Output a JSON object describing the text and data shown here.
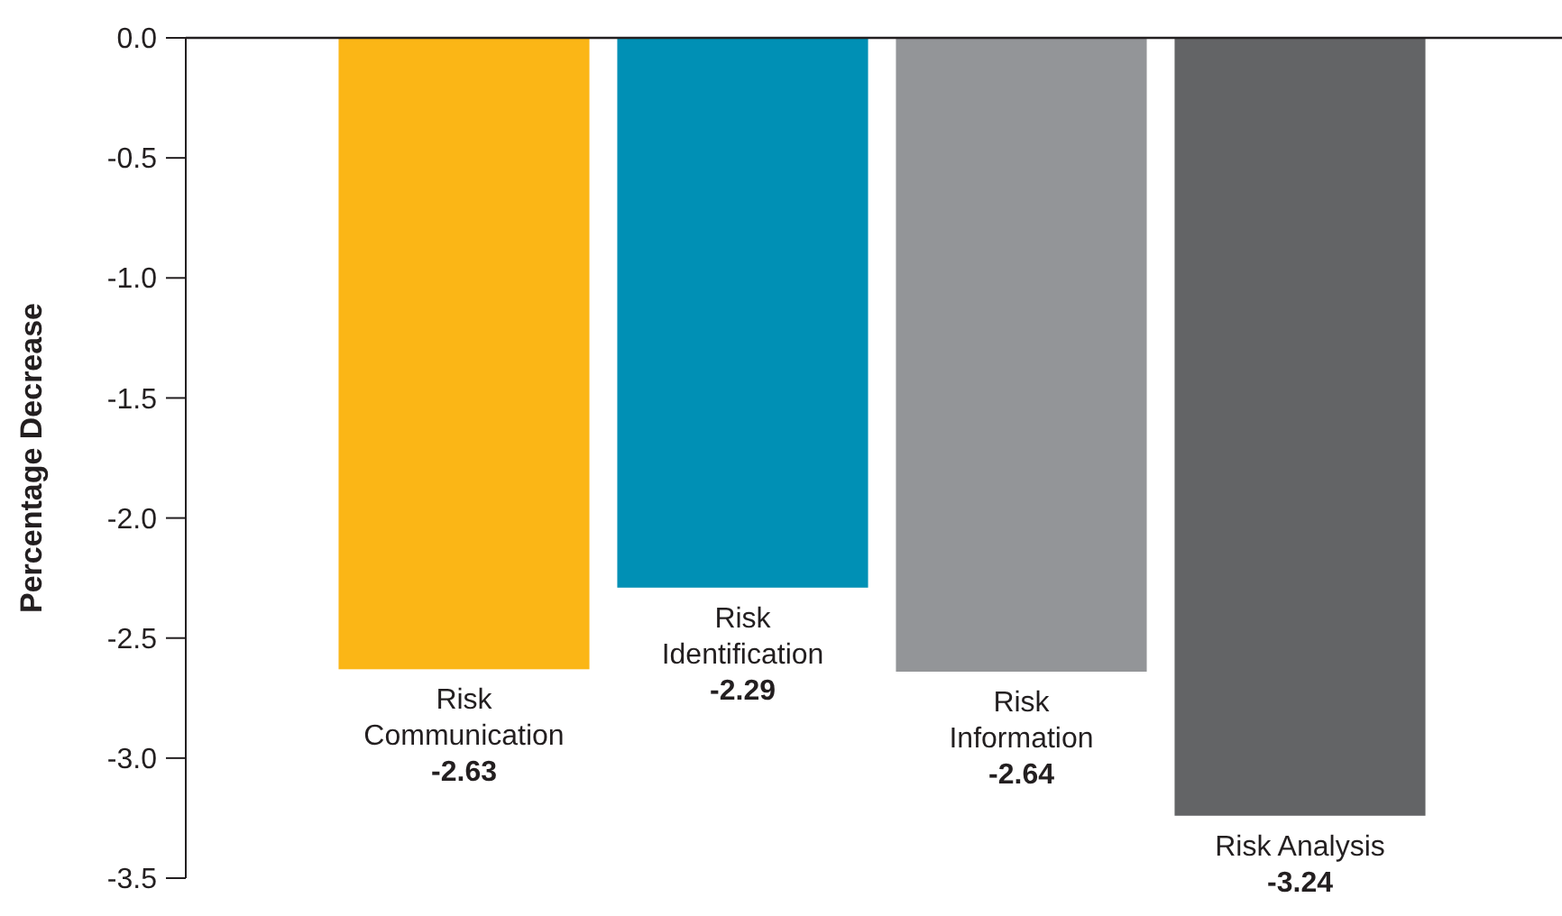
{
  "chart_data": {
    "type": "bar",
    "ylabel": "Percentage Decrease",
    "categories": [
      "Risk Communication",
      "Risk Identification",
      "Risk Information",
      "Risk Analysis"
    ],
    "values": [
      -2.63,
      -2.29,
      -2.64,
      -3.24
    ],
    "colors": [
      "#fbb616",
      "#0090b5",
      "#939598",
      "#636466"
    ],
    "ylim": [
      -3.5,
      0
    ],
    "value_labels": [
      "-2.63",
      "-2.29",
      "-2.64",
      "-3.24"
    ],
    "yticks": [
      {
        "value": 0,
        "label": "0.0"
      },
      {
        "value": -0.5,
        "label": "-0.5"
      },
      {
        "value": -1,
        "label": "-1.0"
      },
      {
        "value": -1.5,
        "label": "-1.5"
      },
      {
        "value": -2,
        "label": "-2.0"
      },
      {
        "value": -2.5,
        "label": "-2.5"
      },
      {
        "value": -3,
        "label": "-3.0"
      },
      {
        "value": -3.5,
        "label": "-3.5"
      }
    ],
    "grid": false
  }
}
